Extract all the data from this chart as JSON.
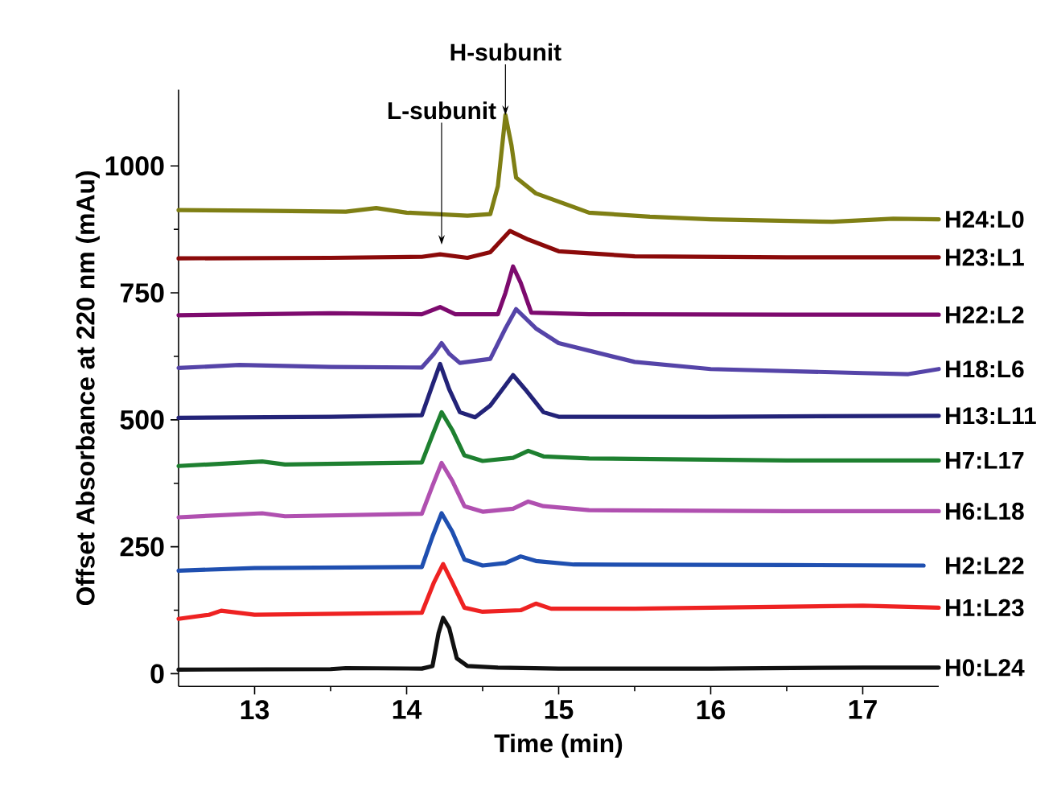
{
  "chart_data": {
    "type": "line",
    "xlabel": "Time (min)",
    "ylabel": "Offset Absorbance at 220 nm (mAu)",
    "xlim": [
      12.5,
      17.5
    ],
    "xticks": [
      13,
      14,
      15,
      16,
      17
    ],
    "ylim": [
      -25,
      1150
    ],
    "yticks": [
      0,
      250,
      500,
      750,
      1000
    ],
    "grid": false,
    "legend": false,
    "annotations": [
      {
        "text": "L-subunit",
        "x": 14.23,
        "y": 845
      },
      {
        "text": "H-subunit",
        "x": 14.65,
        "y": 1100
      }
    ],
    "series": [
      {
        "name": "H24:L0",
        "color": "#7f7f14",
        "x": [
          12.5,
          13.0,
          13.6,
          13.8,
          14.0,
          14.4,
          14.55,
          14.6,
          14.65,
          14.69,
          14.72,
          14.85,
          15.2,
          15.6,
          16.0,
          16.8,
          17.2,
          17.5
        ],
        "values": [
          913,
          912,
          910,
          917,
          908,
          902,
          905,
          960,
          1100,
          1040,
          977,
          946,
          908,
          900,
          895,
          890,
          896,
          895
        ]
      },
      {
        "name": "H23:L1",
        "color": "#8b0a0a",
        "x": [
          12.5,
          13.5,
          14.1,
          14.22,
          14.4,
          14.55,
          14.68,
          14.8,
          15.0,
          15.5,
          16.5,
          17.5
        ],
        "values": [
          818,
          819,
          821,
          826,
          819,
          830,
          872,
          855,
          832,
          822,
          820,
          820
        ]
      },
      {
        "name": "H22:L2",
        "color": "#7d0a6e",
        "x": [
          12.5,
          13.5,
          14.1,
          14.22,
          14.32,
          14.6,
          14.65,
          14.7,
          14.75,
          14.82,
          15.2,
          16.5,
          17.5
        ],
        "values": [
          706,
          710,
          708,
          722,
          708,
          708,
          750,
          802,
          770,
          711,
          708,
          707,
          707
        ]
      },
      {
        "name": "H18:L6",
        "color": "#5544a8",
        "x": [
          12.5,
          12.9,
          13.5,
          14.1,
          14.18,
          14.23,
          14.28,
          14.35,
          14.55,
          14.65,
          14.72,
          14.85,
          15.0,
          15.5,
          16.0,
          17.0,
          17.3,
          17.5
        ],
        "values": [
          602,
          608,
          604,
          603,
          630,
          651,
          630,
          612,
          620,
          680,
          718,
          680,
          651,
          614,
          600,
          592,
          590,
          600
        ]
      },
      {
        "name": "H13:L11",
        "color": "#232378",
        "x": [
          12.5,
          13.5,
          14.1,
          14.16,
          14.22,
          14.28,
          14.35,
          14.45,
          14.55,
          14.63,
          14.7,
          14.78,
          14.9,
          15.0,
          16.0,
          17.5
        ],
        "values": [
          504,
          506,
          509,
          560,
          610,
          560,
          515,
          505,
          528,
          560,
          588,
          560,
          515,
          506,
          506,
          508
        ]
      },
      {
        "name": "H7:L17",
        "color": "#1e8030",
        "x": [
          12.5,
          13.05,
          13.2,
          14.1,
          14.17,
          14.23,
          14.3,
          14.38,
          14.5,
          14.7,
          14.8,
          14.9,
          15.2,
          16.5,
          17.5
        ],
        "values": [
          409,
          418,
          412,
          416,
          470,
          515,
          480,
          430,
          419,
          425,
          439,
          428,
          424,
          420,
          420
        ]
      },
      {
        "name": "H6:L18",
        "color": "#b050b0",
        "x": [
          12.5,
          13.05,
          13.2,
          14.1,
          14.17,
          14.23,
          14.3,
          14.38,
          14.5,
          14.7,
          14.8,
          14.9,
          15.2,
          16.5,
          17.5
        ],
        "values": [
          308,
          316,
          310,
          315,
          370,
          415,
          380,
          330,
          319,
          325,
          339,
          330,
          322,
          320,
          320
        ]
      },
      {
        "name": "H2:L22",
        "color": "#1f4fb0",
        "x": [
          12.5,
          13.0,
          14.1,
          14.17,
          14.23,
          14.3,
          14.38,
          14.5,
          14.65,
          14.75,
          14.85,
          15.1,
          16.5,
          17.4
        ],
        "values": [
          203,
          208,
          210,
          270,
          316,
          280,
          225,
          213,
          218,
          231,
          222,
          215,
          214,
          213
        ]
      },
      {
        "name": "H1:L23",
        "color": "#ee2222",
        "x": [
          12.5,
          12.7,
          12.78,
          13.0,
          14.1,
          14.18,
          14.24,
          14.3,
          14.38,
          14.5,
          14.75,
          14.85,
          14.95,
          15.5,
          17.0,
          17.5
        ],
        "values": [
          108,
          116,
          124,
          116,
          120,
          180,
          216,
          180,
          130,
          122,
          125,
          138,
          128,
          128,
          134,
          130
        ]
      },
      {
        "name": "H0:L24",
        "color": "#111111",
        "x": [
          12.5,
          13.5,
          13.6,
          14.1,
          14.17,
          14.21,
          14.24,
          14.28,
          14.33,
          14.4,
          14.6,
          15.0,
          16.0,
          17.0,
          17.5
        ],
        "values": [
          8,
          9,
          11,
          10,
          15,
          80,
          110,
          90,
          30,
          15,
          12,
          10,
          10,
          12,
          12
        ]
      }
    ]
  }
}
